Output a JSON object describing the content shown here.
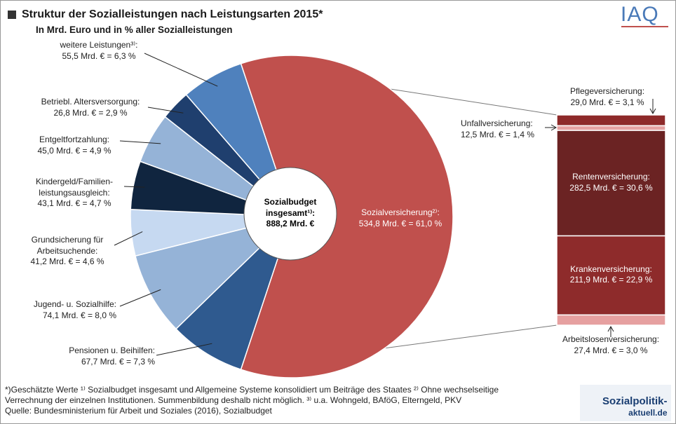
{
  "chart_data": [
    {
      "type": "pie",
      "title": "Struktur der Sozialleistungen nach Leistungsarten 2015*",
      "subtitle": "In Mrd. Euro und in % aller Sozialleistungen",
      "center_label": "Sozialbudget\ninsgesamt¹⁾:\n888,2 Mrd. €",
      "categories": [
        "Sozialversicherung²⁾:",
        "Pensionen u. Beihilfen:",
        "Jugend- u. Sozialhilfe:",
        "Grundsicherung für\nArbeitsuchende:",
        "Kindergeld/Familien-\nleistungsausgleich:",
        "Entgeltfortzahlung:",
        "Betriebl. Altersversorgung:",
        "weitere Leistungen³⁾:"
      ],
      "values": [
        534.8,
        67.7,
        74.1,
        41.2,
        43.1,
        45.0,
        26.8,
        55.5
      ],
      "value_labels": [
        "534,8 Mrd. € = 61,0 %",
        "67,7 Mrd. € = 7,3 %",
        "74,1 Mrd. € = 8,0 %",
        "41,2 Mrd. € = 4,6 %",
        "43,1 Mrd. € = 4,7 %",
        "45,0 Mrd. € = 4,9 %",
        "26,8 Mrd. € = 2,9 %",
        "55,5 Mrd. € = 6,3 %"
      ],
      "colors": [
        "#c0504d",
        "#2f5a8f",
        "#95b3d7",
        "#c6d9f1",
        "#10253f",
        "#95b3d7",
        "#1f3f6e",
        "#4f81bd"
      ]
    },
    {
      "type": "bar",
      "categories": [
        "Pflegeversicherung:",
        "Unfallversicherung:",
        "Rentenversicherung:",
        "Krankenversicherung:",
        "Arbeitslosenversicherung:"
      ],
      "values": [
        29.0,
        12.5,
        282.5,
        211.9,
        27.4
      ],
      "value_labels": [
        "29,0 Mrd. € = 3,1 %",
        "12,5 Mrd. € = 1,4 %",
        "282,5 Mrd. € = 30,6 %",
        "211,9 Mrd. € = 22,9 %",
        "27,4 Mrd. € = 3,0 %"
      ],
      "colors": [
        "#8e2a2a",
        "#e6a3a3",
        "#6b2323",
        "#8e2b2b",
        "#e6a0a0"
      ]
    }
  ],
  "footnotes": [
    "*)Geschätzte Werte ¹⁾ Sozialbudget insgesamt und Allgemeine Systeme konsolidiert um Beiträge des Staates ²⁾ Ohne wechselseitige",
    "Verrechnung der einzelnen Institutionen. Summenbildung deshalb nicht möglich. ³⁾ u.a. Wohngeld, BAföG, Elterngeld, PKV",
    "Quelle: Bundesministerium für Arbeit und Soziales (2016), Sozialbudget"
  ],
  "logos": [
    "IAQ",
    "Sozialpolitik-",
    "aktuell.de"
  ]
}
